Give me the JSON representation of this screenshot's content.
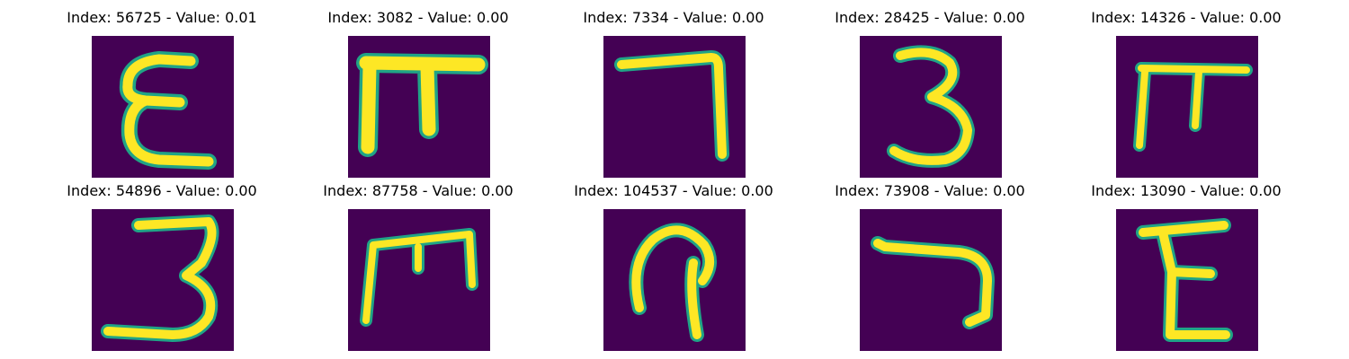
{
  "panels": [
    {
      "title": "Index: 56725 - Value: 0.01",
      "glyph": "epsilon-like"
    },
    {
      "title": "Index: 3082 - Value: 0.00",
      "glyph": "pi-like"
    },
    {
      "title": "Index: 7334 - Value: 0.00",
      "glyph": "seven-like"
    },
    {
      "title": "Index: 28425 - Value: 0.00",
      "glyph": "three"
    },
    {
      "title": "Index: 14326 - Value: 0.00",
      "glyph": "pi-like"
    },
    {
      "title": "Index: 54896 - Value: 0.00",
      "glyph": "three"
    },
    {
      "title": "Index: 87758 - Value: 0.00",
      "glyph": "m-like"
    },
    {
      "title": "Index: 104537 - Value: 0.00",
      "glyph": "loop-like"
    },
    {
      "title": "Index: 73908 - Value: 0.00",
      "glyph": "seven-like"
    },
    {
      "title": "Index: 13090 - Value: 0.00",
      "glyph": "epsilon-like"
    }
  ],
  "colors": {
    "background": "#440154",
    "mid": "#20a486",
    "high": "#fde725"
  }
}
